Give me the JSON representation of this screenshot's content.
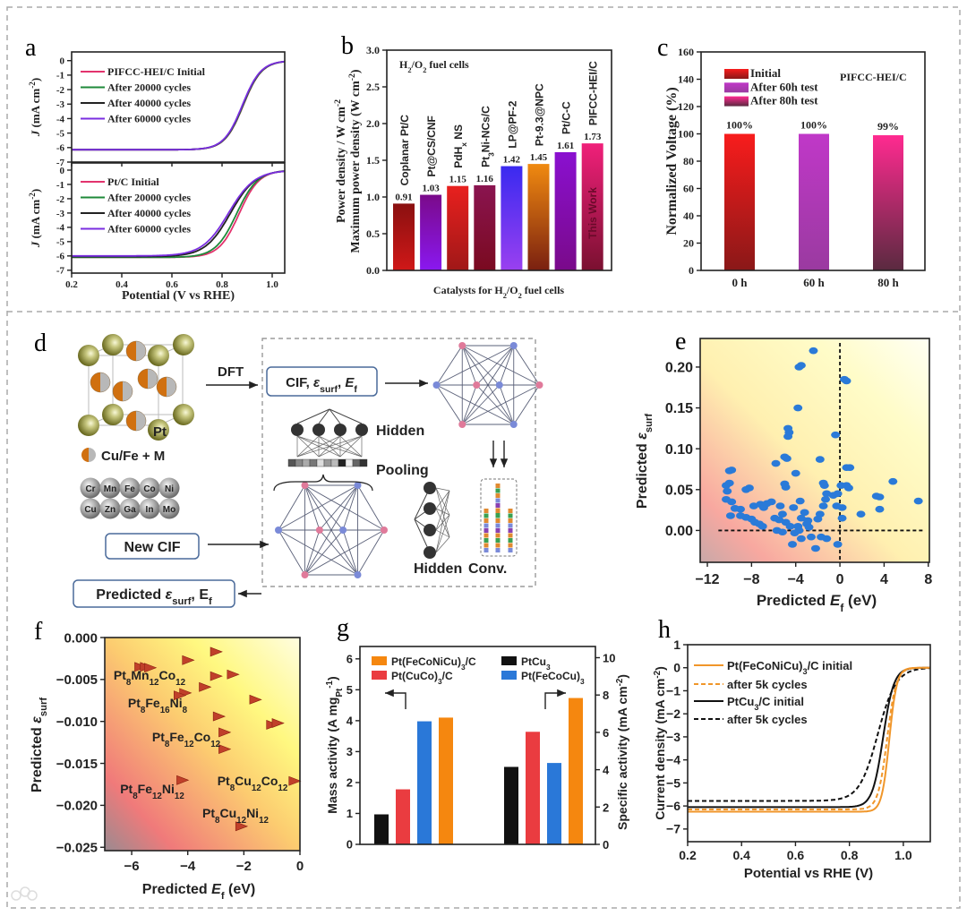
{
  "panels": {
    "a": "a",
    "b": "b",
    "c": "c",
    "d": "d",
    "e": "e",
    "f": "f",
    "g": "g",
    "h": "h"
  },
  "watermark": "大数跨境",
  "diagram": {
    "dft": "DFT",
    "cif_box": "CIF, *ε*_{surf}, *E*_{f}",
    "hidden_top": "Hidden",
    "pooling": "Pooling",
    "hidden_bottom": "Hidden",
    "conv": "Conv.",
    "new_cif": "New CIF",
    "predicted": "Predicted *ε*_{surf}, E_{f}",
    "pt_label": "Pt",
    "legend_cu_fe": "Cu/Fe + M",
    "elements": [
      "Cr",
      "Mn",
      "Fe",
      "Co",
      "Ni",
      "Cu",
      "Zn",
      "Ga",
      "In",
      "Mo"
    ]
  },
  "chart_data": [
    {
      "panel": "a",
      "type": "line",
      "xlabel": "Potential (V vs RHE)",
      "ylabel": "*J* (mA cm^{-2})",
      "xlim": [
        0.2,
        1.05
      ],
      "xticks": [
        "0.2",
        "0.4",
        "0.6",
        "0.8",
        "1.0"
      ],
      "subplots": [
        {
          "ylim": [
            -7,
            0.6
          ],
          "yticks": [
            "0",
            "-1",
            "-2",
            "-3",
            "-4",
            "-5",
            "-6",
            "-7"
          ],
          "series": [
            {
              "name": "PIFCC-HEI/C  Initial",
              "color": "#e2336d",
              "limiting_current": -6.15,
              "half_wave_potential": 0.885,
              "width": 0.037
            },
            {
              "name": "After 20000 cycles",
              "color": "#1e8a3a",
              "limiting_current": -6.15,
              "half_wave_potential": 0.884,
              "width": 0.037
            },
            {
              "name": "After 40000 cycles",
              "color": "#222222",
              "limiting_current": -6.15,
              "half_wave_potential": 0.882,
              "width": 0.037
            },
            {
              "name": "After 60000 cycles",
              "color": "#7a2ee0",
              "limiting_current": -6.15,
              "half_wave_potential": 0.881,
              "width": 0.037
            }
          ]
        },
        {
          "ylim": [
            -7.2,
            0.5
          ],
          "yticks": [
            "0",
            "-1",
            "-2",
            "-3",
            "-4",
            "-5",
            "-6",
            "-7"
          ],
          "series": [
            {
              "name": "Pt/C  Initial",
              "color": "#e2336d",
              "limiting_current": -6.1,
              "half_wave_potential": 0.868,
              "width": 0.04
            },
            {
              "name": "After 20000 cycles",
              "color": "#1e8a3a",
              "limiting_current": -6.1,
              "half_wave_potential": 0.858,
              "width": 0.042
            },
            {
              "name": "After 40000 cycles",
              "color": "#222222",
              "limiting_current": -6.05,
              "half_wave_potential": 0.833,
              "width": 0.05
            },
            {
              "name": "After 60000 cycles",
              "color": "#7a2ee0",
              "limiting_current": -6.0,
              "half_wave_potential": 0.826,
              "width": 0.052
            }
          ]
        }
      ]
    },
    {
      "panel": "b",
      "type": "bar",
      "title": "H_{2}/O_{2} fuel cells",
      "xlabel": "Catalysts for H_{2}/O_{2} fuel cells",
      "ylabel_line1": "Power density / W cm^{-2}",
      "ylabel_line2": "Maximum power density (W cm^{-2})",
      "ylim": [
        0,
        3.0
      ],
      "yticks": [
        "0.0",
        "0.5",
        "1.0",
        "1.5",
        "2.0",
        "2.5",
        "3.0"
      ],
      "categories": [
        "Coplanar Pt/C",
        "Pt@CS/CNF",
        "PdH_{x} NS",
        "Pt_{3}Ni-NCs/C",
        "LP@PF-2",
        "Pt-9.3@NPC",
        "Pt/C-C",
        "PIFCC-HEI/C"
      ],
      "values": [
        0.91,
        1.03,
        1.15,
        1.16,
        1.42,
        1.45,
        1.61,
        1.73
      ],
      "value_labels": [
        "0.91",
        "1.03",
        "1.15",
        "1.16",
        "1.42",
        "1.45",
        "1.61",
        "1.73"
      ],
      "colors": [
        [
          "#8a1010",
          "#d01818"
        ],
        [
          "#7a0a8a",
          "#8a18f0"
        ],
        [
          "#e8201e",
          "#a01818"
        ],
        [
          "#8a1450",
          "#7a0a20"
        ],
        [
          "#3a2af0",
          "#9a40f0"
        ],
        [
          "#f08a10",
          "#7a2010"
        ],
        [
          "#8a10d0",
          "#7a0a8a"
        ],
        [
          "#f0207a",
          "#7a1030"
        ]
      ],
      "highlight_label": "This Work"
    },
    {
      "panel": "c",
      "type": "bar",
      "ylabel": "Normalized Voltage (%)",
      "annotation": "PIFCC-HEI/C",
      "ylim": [
        0,
        160
      ],
      "yticks": [
        "0",
        "20",
        "40",
        "60",
        "80",
        "100",
        "120",
        "140",
        "160"
      ],
      "categories": [
        "0 h",
        "60 h",
        "80 h"
      ],
      "values": [
        100,
        100,
        99
      ],
      "value_labels": [
        "100%",
        "100%",
        "99%"
      ],
      "legend": [
        "Initial",
        "After 60h test",
        "After 80h test"
      ],
      "colors": [
        [
          "#f81c1c",
          "#8a1818"
        ],
        [
          "#c038c8",
          "#9a3aa0"
        ],
        [
          "#ff2a90",
          "#5a2a40"
        ]
      ]
    },
    {
      "panel": "e",
      "type": "scatter",
      "xlabel": "Predicted *E*_{f} (eV)",
      "ylabel": "Predicted *ε*_{surf}",
      "xlim": [
        -12.65,
        8.1
      ],
      "ylim": [
        -0.039,
        0.235
      ],
      "xticks": [
        "−12",
        "−8",
        "−4",
        "0",
        "4",
        "8"
      ],
      "yticks": [
        "0.00",
        "0.05",
        "0.10",
        "0.15",
        "0.20"
      ],
      "reference_lines": {
        "x": 0,
        "y": 0
      },
      "color": "#2a7ad8",
      "points": [
        [
          -2.4,
          0.22
        ],
        [
          -3.7,
          0.2
        ],
        [
          -3.5,
          0.202
        ],
        [
          0.4,
          0.185
        ],
        [
          0.6,
          0.183
        ],
        [
          -3.8,
          0.15
        ],
        [
          -4.7,
          0.125
        ],
        [
          -4.6,
          0.12
        ],
        [
          -4.7,
          0.115
        ],
        [
          -0.4,
          0.117
        ],
        [
          -5.0,
          0.09
        ],
        [
          -5.8,
          0.082
        ],
        [
          -1.8,
          0.087
        ],
        [
          -4.8,
          0.088
        ],
        [
          0.6,
          0.077
        ],
        [
          0.9,
          0.077
        ],
        [
          -10.0,
          0.073
        ],
        [
          -9.8,
          0.074
        ],
        [
          -4.0,
          0.07
        ],
        [
          -10.3,
          0.055
        ],
        [
          -10.0,
          0.058
        ],
        [
          -10.2,
          0.048
        ],
        [
          -8.5,
          0.05
        ],
        [
          -8.2,
          0.052
        ],
        [
          -5.0,
          0.057
        ],
        [
          -4.9,
          0.053
        ],
        [
          -1.5,
          0.058
        ],
        [
          -1.4,
          0.055
        ],
        [
          0.1,
          0.055
        ],
        [
          0.6,
          0.055
        ],
        [
          0.8,
          0.052
        ],
        [
          4.8,
          0.06
        ],
        [
          7.1,
          0.036
        ],
        [
          3.3,
          0.042
        ],
        [
          3.6,
          0.041
        ],
        [
          3.6,
          0.026
        ],
        [
          1.9,
          0.02
        ],
        [
          -10.3,
          0.038
        ],
        [
          -9.8,
          0.035
        ],
        [
          -9.5,
          0.027
        ],
        [
          -9.0,
          0.026
        ],
        [
          -9.9,
          0.018
        ],
        [
          -9.0,
          0.018
        ],
        [
          -8.5,
          0.016
        ],
        [
          -8.0,
          0.014
        ],
        [
          -7.7,
          0.01
        ],
        [
          -7.3,
          0.008
        ],
        [
          -7.0,
          0.005
        ],
        [
          -7.8,
          0.03
        ],
        [
          -7.2,
          0.032
        ],
        [
          -6.9,
          0.028
        ],
        [
          -6.6,
          0.033
        ],
        [
          -6.2,
          0.035
        ],
        [
          -5.9,
          0.015
        ],
        [
          -5.5,
          0.013
        ],
        [
          -5.2,
          0.02
        ],
        [
          -4.9,
          0.01
        ],
        [
          -5.4,
          0.03
        ],
        [
          -5.7,
          0.0
        ],
        [
          -5.2,
          -0.002
        ],
        [
          -4.5,
          0.005
        ],
        [
          -4.2,
          0.028
        ],
        [
          -3.6,
          0.036
        ],
        [
          -4.1,
          -0.003
        ],
        [
          -3.7,
          0.0
        ],
        [
          -3.5,
          0.015
        ],
        [
          -3.2,
          0.022
        ],
        [
          -3.0,
          0.008
        ],
        [
          -2.8,
          0.004
        ],
        [
          -2.6,
          -0.008
        ],
        [
          -2.2,
          -0.022
        ],
        [
          -2.9,
          0.012
        ],
        [
          -3.5,
          -0.01
        ],
        [
          -4.3,
          -0.017
        ],
        [
          -1.7,
          -0.008
        ],
        [
          -1.2,
          -0.01
        ],
        [
          -1.5,
          0.03
        ],
        [
          -1.3,
          0.038
        ],
        [
          -1.2,
          0.045
        ],
        [
          -0.6,
          0.043
        ],
        [
          -0.2,
          0.045
        ],
        [
          -1.8,
          0.02
        ],
        [
          -0.3,
          0.03
        ],
        [
          0.2,
          0.028
        ],
        [
          0.2,
          0.015
        ],
        [
          -0.2,
          -0.017
        ],
        [
          -2.0,
          0.014
        ],
        [
          -3.8,
          0.005
        ]
      ]
    },
    {
      "panel": "f",
      "type": "scatter",
      "xlabel": "Predicted *E*_{f} (eV)",
      "ylabel": "Predicted *ε*_{surf}",
      "xlim": [
        -6.96,
        0
      ],
      "ylim": [
        -0.0254,
        0
      ],
      "xticks": [
        "−6",
        "−4",
        "−2",
        "0"
      ],
      "yticks": [
        "0.000",
        "−0.005",
        "−0.010",
        "−0.015",
        "−0.020",
        "−0.025"
      ],
      "color": "#c0402a",
      "points": [
        [
          -5.7,
          -0.0035
        ],
        [
          -5.5,
          -0.0035
        ],
        [
          -5.35,
          -0.0036
        ],
        [
          -4.0,
          -0.0027
        ],
        [
          -3.0,
          -0.0017
        ],
        [
          -3.0,
          -0.0046
        ],
        [
          -2.4,
          -0.0044
        ],
        [
          -3.4,
          -0.0059
        ],
        [
          -4.1,
          -0.0066
        ],
        [
          -4.3,
          -0.0069
        ],
        [
          -1.6,
          -0.0074
        ],
        [
          -2.9,
          -0.0094
        ],
        [
          -1.0,
          -0.0104
        ],
        [
          -0.8,
          -0.0102
        ],
        [
          -2.7,
          -0.0113
        ],
        [
          -2.7,
          -0.0133
        ],
        [
          -4.2,
          -0.017
        ],
        [
          -0.2,
          -0.0171
        ],
        [
          -2.1,
          -0.0225
        ]
      ],
      "annotations": [
        "Pt_{8}Mn_{12}Co_{12}",
        "Pt_{8}Fe_{16}Ni_{8}",
        "Pt_{8}Fe_{12}Co_{12}",
        "Pt_{8}Fe_{12}Ni_{12}",
        "Pt_{8}Cu_{12}Co_{12}",
        "Pt_{8}Cu_{12}Ni_{12}"
      ]
    },
    {
      "panel": "g",
      "type": "bar",
      "ylabel_left": "Mass activity (A mg_{Pt}^{-1})",
      "ylabel_right": "Specific activity (mA cm^{-2})",
      "ylim_left": [
        0,
        6.4
      ],
      "ylim_right": [
        0,
        10.6
      ],
      "yticks_left": [
        "0",
        "1",
        "2",
        "3",
        "4",
        "5",
        "6"
      ],
      "yticks_right": [
        "0",
        "2",
        "4",
        "6",
        "8",
        "10"
      ],
      "groups": [
        "Mass activity",
        "Specific activity"
      ],
      "series": [
        {
          "name": "PtCu_{3}",
          "color": "#111111",
          "mass_activity": 0.97,
          "specific_activity": 4.15
        },
        {
          "name": "Pt(CuCo)_{3}/C",
          "color": "#ea3c40",
          "mass_activity": 1.78,
          "specific_activity": 6.03
        },
        {
          "name": "Pt(FeCoCu)_{3}",
          "color": "#2a78d8",
          "mass_activity": 3.98,
          "specific_activity": 4.36
        },
        {
          "name": "Pt(FeCoNiCu)_{3}/C",
          "color": "#f5870f",
          "mass_activity": 4.1,
          "specific_activity": 7.84
        }
      ]
    },
    {
      "panel": "h",
      "type": "line",
      "xlabel": "Potential vs RHE (V)",
      "ylabel": "Current density (mA cm^{-2})",
      "xlim": [
        0.2,
        1.1
      ],
      "ylim": [
        -7.55,
        1.0
      ],
      "xticks": [
        "0.2",
        "0.4",
        "0.6",
        "0.8",
        "1.0"
      ],
      "yticks": [
        "1",
        "0",
        "−1",
        "−2",
        "−3",
        "−4",
        "−5",
        "−6",
        "−7"
      ],
      "series": [
        {
          "name": "Pt(FeCoNiCu)_{3}/C initial",
          "color": "#f0962a",
          "dash": false,
          "limiting_current": -6.25,
          "half_wave_potential": 0.948,
          "width": 0.014
        },
        {
          "name": "after 5k cycles",
          "color": "#f0962a",
          "dash": true,
          "limiting_current": -6.15,
          "half_wave_potential": 0.94,
          "width": 0.017
        },
        {
          "name": "PtCu_{3}/C initial",
          "color": "#111111",
          "dash": false,
          "limiting_current": -6.05,
          "half_wave_potential": 0.925,
          "width": 0.02
        },
        {
          "name": "after 5k cycles",
          "color": "#111111",
          "dash": true,
          "limiting_current": -5.78,
          "half_wave_potential": 0.905,
          "width": 0.034
        }
      ]
    }
  ]
}
